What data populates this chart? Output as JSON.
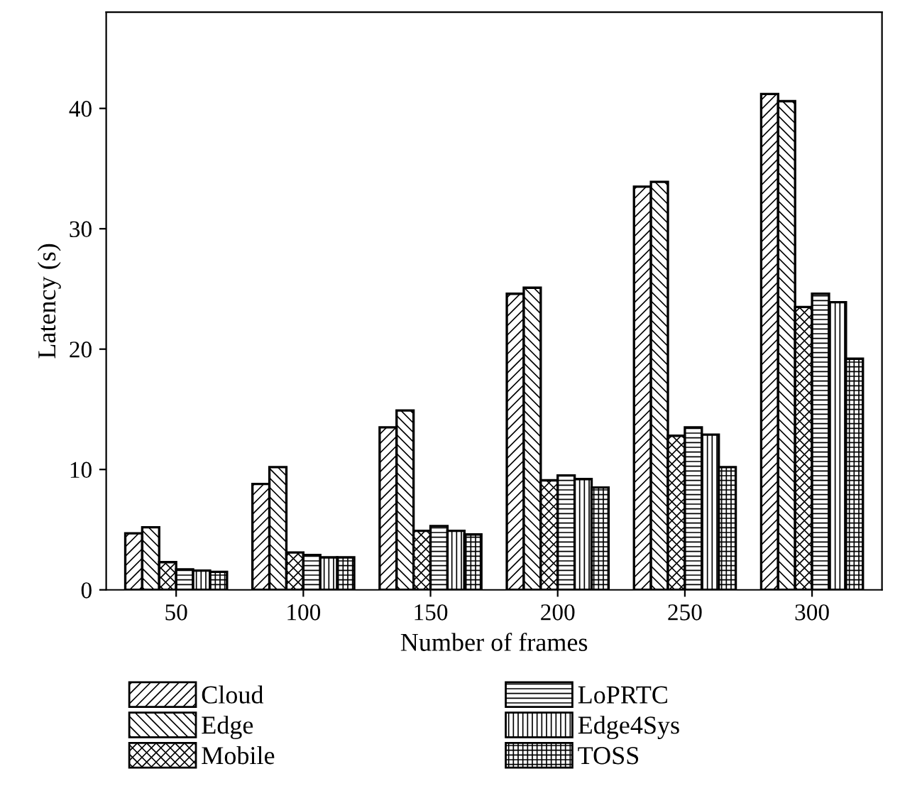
{
  "chart_data": {
    "type": "bar",
    "xlabel": "Number of frames",
    "ylabel": "Latency (s)",
    "categories": [
      "50",
      "100",
      "150",
      "200",
      "250",
      "300"
    ],
    "series": [
      {
        "name": "Cloud",
        "color": "#000000",
        "values": [
          4.7,
          8.8,
          13.5,
          24.6,
          33.5,
          41.2
        ]
      },
      {
        "name": "Edge",
        "color": "#000000",
        "values": [
          5.2,
          10.2,
          14.9,
          25.1,
          33.9,
          40.6
        ]
      },
      {
        "name": "Mobile",
        "color": "#000000",
        "values": [
          2.3,
          3.1,
          4.9,
          9.1,
          12.8,
          23.5
        ]
      },
      {
        "name": "LoPRTC",
        "color": "#000000",
        "values": [
          1.7,
          2.9,
          5.3,
          9.5,
          13.5,
          24.6
        ]
      },
      {
        "name": "Edge4Sys",
        "color": "#000000",
        "values": [
          1.6,
          2.7,
          4.9,
          9.2,
          12.9,
          23.9
        ]
      },
      {
        "name": "TOSS",
        "color": "#000000",
        "values": [
          1.5,
          2.7,
          4.6,
          8.5,
          10.2,
          19.2
        ]
      }
    ],
    "ylim": [
      0,
      48
    ],
    "yticks": [
      0,
      10,
      20,
      30,
      40
    ],
    "grid": false,
    "legend": "bottom"
  }
}
